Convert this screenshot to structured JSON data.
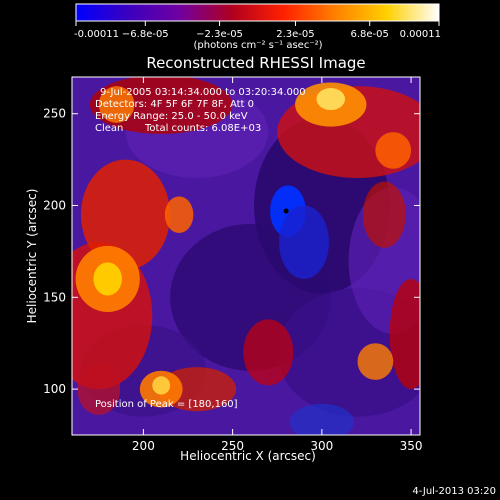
{
  "colorbar": {
    "tick_labels": [
      "-0.00011",
      "−6.8e-05",
      "−2.3e-05",
      "2.3e-05",
      "6.8e-05",
      "0.00011"
    ],
    "tick_values": [
      -0.00011,
      -6.8e-05,
      -2.3e-05,
      2.3e-05,
      6.8e-05,
      0.00011
    ],
    "range": [
      -0.00011,
      0.00011
    ],
    "units": "(photons cm⁻² s⁻¹ asec⁻²)",
    "colors": [
      "#0000ff",
      "#3a00c0",
      "#7000a0",
      "#b00020",
      "#ff2000",
      "#ff8000",
      "#ffd000",
      "#ffffff"
    ]
  },
  "chart_data": {
    "type": "heatmap",
    "title": "Reconstructed RHESSI Image",
    "xlabel": "Heliocentric X (arcsec)",
    "ylabel": "Heliocentric Y (arcsec)",
    "xlim": [
      160,
      355
    ],
    "ylim": [
      75,
      270
    ],
    "xticks": [
      200,
      250,
      300,
      350
    ],
    "yticks": [
      100,
      150,
      200,
      250
    ],
    "annotations": {
      "time_range": "9-Jul-2005 03:14:34.000 to 03:20:34.000",
      "detectors": "Detectors: 4F 5F 6F 7F 8F, Att 0",
      "energy": "Energy Range: 25.0 - 50.0 keV",
      "clean": "Clean",
      "counts": "Total counts: 6.08E+03",
      "peak": "Position of Peak = [180,160]"
    },
    "marker": {
      "x": 280,
      "y": 197
    }
  },
  "footer": {
    "timestamp": "4-Jul-2013 03:20"
  }
}
